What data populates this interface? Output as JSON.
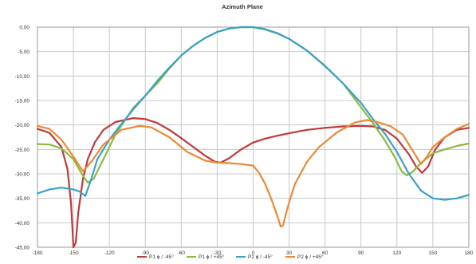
{
  "chart_data": {
    "type": "line",
    "title": "Azimuth Plane",
    "xlabel": "",
    "ylabel": "",
    "xlim": [
      -180,
      180
    ],
    "ylim": [
      -45,
      0
    ],
    "x_ticks": [
      -180,
      -150,
      -120,
      -90,
      -60,
      -30,
      0,
      30,
      60,
      90,
      120,
      150,
      180
    ],
    "x_tick_labels": [
      "-180",
      "-150",
      "-120",
      "-90",
      "-60",
      "-30",
      "0",
      "30",
      "60",
      "90",
      "120",
      "150",
      "180"
    ],
    "y_ticks": [
      0,
      -5,
      -10,
      -15,
      -20,
      -25,
      -30,
      -35,
      -40,
      -45
    ],
    "y_tick_labels": [
      "0,00",
      "-5,00",
      "-10,00",
      "-15,00",
      "-20,00",
      "-25,00",
      "-30,00",
      "-35,00",
      "-40,00",
      "-45,00"
    ],
    "grid": true,
    "legend_position": "bottom",
    "series": [
      {
        "name": "P1 ϕ / -45°",
        "color": "#c0393b",
        "points": [
          [
            -180,
            -20.8
          ],
          [
            -170,
            -21.6
          ],
          [
            -160,
            -24.5
          ],
          [
            -155,
            -29
          ],
          [
            -152,
            -36
          ],
          [
            -150,
            -45
          ],
          [
            -148,
            -44
          ],
          [
            -146,
            -38
          ],
          [
            -142,
            -31
          ],
          [
            -138,
            -27
          ],
          [
            -132,
            -23.5
          ],
          [
            -125,
            -21
          ],
          [
            -115,
            -19.4
          ],
          [
            -100,
            -18.6
          ],
          [
            -90,
            -18.8
          ],
          [
            -80,
            -19.6
          ],
          [
            -70,
            -21
          ],
          [
            -60,
            -22.7
          ],
          [
            -50,
            -24.5
          ],
          [
            -40,
            -26.3
          ],
          [
            -32,
            -27.5
          ],
          [
            -27,
            -27.7
          ],
          [
            -20,
            -26.8
          ],
          [
            -10,
            -25
          ],
          [
            0,
            -23.6
          ],
          [
            10,
            -22.8
          ],
          [
            20,
            -22.2
          ],
          [
            30,
            -21.7
          ],
          [
            45,
            -21
          ],
          [
            60,
            -20.6
          ],
          [
            75,
            -20.3
          ],
          [
            90,
            -20.2
          ],
          [
            100,
            -20.3
          ],
          [
            110,
            -21
          ],
          [
            120,
            -22.8
          ],
          [
            130,
            -26
          ],
          [
            136,
            -28.5
          ],
          [
            141,
            -29.8
          ],
          [
            146,
            -28.5
          ],
          [
            152,
            -25
          ],
          [
            160,
            -22.5
          ],
          [
            170,
            -21
          ],
          [
            180,
            -20.6
          ]
        ]
      },
      {
        "name": "P1 ϕ / +45°",
        "color": "#8dba3f",
        "points": [
          [
            -180,
            -23.9
          ],
          [
            -170,
            -24
          ],
          [
            -160,
            -24.8
          ],
          [
            -150,
            -27
          ],
          [
            -143,
            -30
          ],
          [
            -138,
            -31.8
          ],
          [
            -133,
            -31
          ],
          [
            -125,
            -27
          ],
          [
            -115,
            -22
          ],
          [
            -100,
            -16.5
          ],
          [
            -90,
            -14
          ],
          [
            -80,
            -11.5
          ],
          [
            -70,
            -8.5
          ],
          [
            -60,
            -5.8
          ],
          [
            -50,
            -3.8
          ],
          [
            -40,
            -2.2
          ],
          [
            -30,
            -1
          ],
          [
            -20,
            -0.3
          ],
          [
            -10,
            0
          ],
          [
            0,
            0
          ],
          [
            10,
            -0.5
          ],
          [
            20,
            -1.3
          ],
          [
            30,
            -2.4
          ],
          [
            45,
            -4.8
          ],
          [
            60,
            -7.9
          ],
          [
            75,
            -11.5
          ],
          [
            90,
            -16.4
          ],
          [
            100,
            -19.6
          ],
          [
            110,
            -23.2
          ],
          [
            118,
            -26.5
          ],
          [
            124,
            -29.5
          ],
          [
            128,
            -30.3
          ],
          [
            133,
            -29.6
          ],
          [
            140,
            -27.8
          ],
          [
            150,
            -25.8
          ],
          [
            160,
            -25
          ],
          [
            170,
            -24.3
          ],
          [
            180,
            -23.8
          ]
        ]
      },
      {
        "name": "P2 ϕ / -45°",
        "color": "#3aa1c9",
        "points": [
          [
            -180,
            -34
          ],
          [
            -170,
            -33.2
          ],
          [
            -160,
            -32.8
          ],
          [
            -150,
            -33.2
          ],
          [
            -145,
            -33.6
          ],
          [
            -140,
            -34.5
          ],
          [
            -135,
            -31
          ],
          [
            -130,
            -27
          ],
          [
            -120,
            -23
          ],
          [
            -110,
            -19.8
          ],
          [
            -100,
            -16.8
          ],
          [
            -90,
            -14
          ],
          [
            -80,
            -11
          ],
          [
            -70,
            -8.3
          ],
          [
            -60,
            -5.8
          ],
          [
            -50,
            -3.8
          ],
          [
            -40,
            -2.2
          ],
          [
            -30,
            -1
          ],
          [
            -20,
            -0.3
          ],
          [
            -10,
            0
          ],
          [
            0,
            0
          ],
          [
            10,
            -0.4
          ],
          [
            20,
            -1.2
          ],
          [
            30,
            -2.4
          ],
          [
            45,
            -4.8
          ],
          [
            60,
            -8
          ],
          [
            75,
            -11.5
          ],
          [
            90,
            -15.5
          ],
          [
            100,
            -18.8
          ],
          [
            110,
            -21.8
          ],
          [
            120,
            -25.5
          ],
          [
            130,
            -30
          ],
          [
            140,
            -33.4
          ],
          [
            150,
            -35
          ],
          [
            160,
            -35.3
          ],
          [
            170,
            -35
          ],
          [
            180,
            -34.3
          ]
        ]
      },
      {
        "name": "P2 ϕ / +45°",
        "color": "#ee8833",
        "points": [
          [
            -180,
            -20.2
          ],
          [
            -170,
            -20.8
          ],
          [
            -160,
            -23
          ],
          [
            -150,
            -26.5
          ],
          [
            -142,
            -29.5
          ],
          [
            -135,
            -27.5
          ],
          [
            -125,
            -24
          ],
          [
            -110,
            -21
          ],
          [
            -95,
            -20.2
          ],
          [
            -85,
            -20.5
          ],
          [
            -70,
            -22.5
          ],
          [
            -55,
            -25.5
          ],
          [
            -40,
            -27.3
          ],
          [
            -30,
            -27.7
          ],
          [
            -20,
            -27.8
          ],
          [
            -10,
            -28
          ],
          [
            0,
            -28.3
          ],
          [
            5,
            -29.8
          ],
          [
            10,
            -32
          ],
          [
            15,
            -35
          ],
          [
            20,
            -38.5
          ],
          [
            23,
            -40.8
          ],
          [
            25,
            -40.5
          ],
          [
            27,
            -38.5
          ],
          [
            30,
            -35.8
          ],
          [
            35,
            -32
          ],
          [
            45,
            -27.5
          ],
          [
            55,
            -24.5
          ],
          [
            70,
            -21.5
          ],
          [
            85,
            -19.5
          ],
          [
            95,
            -19
          ],
          [
            105,
            -19.5
          ],
          [
            115,
            -20.3
          ],
          [
            125,
            -22
          ],
          [
            135,
            -26
          ],
          [
            140,
            -28
          ],
          [
            145,
            -26.5
          ],
          [
            150,
            -24.5
          ],
          [
            160,
            -22.5
          ],
          [
            170,
            -20.8
          ],
          [
            180,
            -19.8
          ]
        ]
      }
    ]
  }
}
